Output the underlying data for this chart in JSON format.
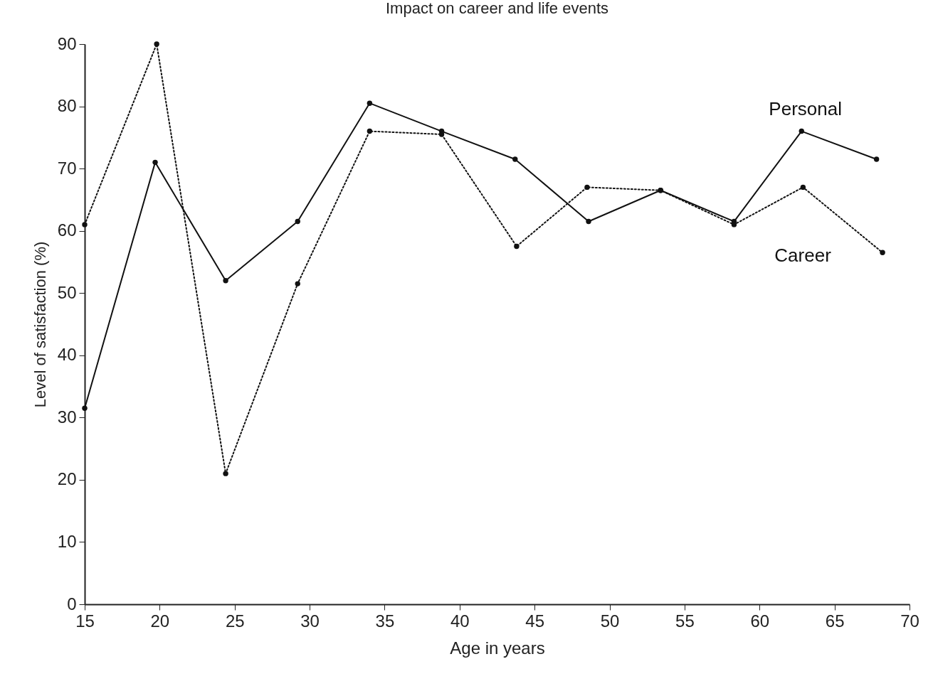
{
  "chart_data": {
    "type": "line",
    "title": "Impact on career and life events",
    "xlabel": "Age in years",
    "ylabel": "Level of satisfaction (%)",
    "xlim": [
      15,
      70
    ],
    "xticks": [
      15,
      20,
      25,
      30,
      35,
      40,
      45,
      50,
      55,
      60,
      65,
      70
    ],
    "ylim": [
      0,
      90
    ],
    "yticks": [
      0,
      10,
      20,
      30,
      40,
      50,
      60,
      70,
      80,
      90
    ],
    "grid": false,
    "marker": "circle",
    "series": [
      {
        "name": "Personal",
        "color": "#111111",
        "line_style": "solid",
        "x": [
          15,
          19.7,
          24.4,
          29.2,
          34,
          38.8,
          43.7,
          48.6,
          53.4,
          58.3,
          62.8,
          67.8
        ],
        "values": [
          31.5,
          71,
          52,
          61.5,
          80.5,
          76,
          71.5,
          61.5,
          66.5,
          61.5,
          76,
          71.5
        ]
      },
      {
        "name": "Career",
        "color": "#111111",
        "line_style": "dotted",
        "x": [
          15,
          19.8,
          24.4,
          29.2,
          34,
          38.8,
          43.8,
          48.5,
          53.4,
          58.3,
          62.9,
          68.2
        ],
        "values": [
          61,
          90,
          21,
          51.5,
          76,
          75.5,
          57.5,
          67,
          66.5,
          61,
          67,
          56.5
        ]
      }
    ]
  }
}
